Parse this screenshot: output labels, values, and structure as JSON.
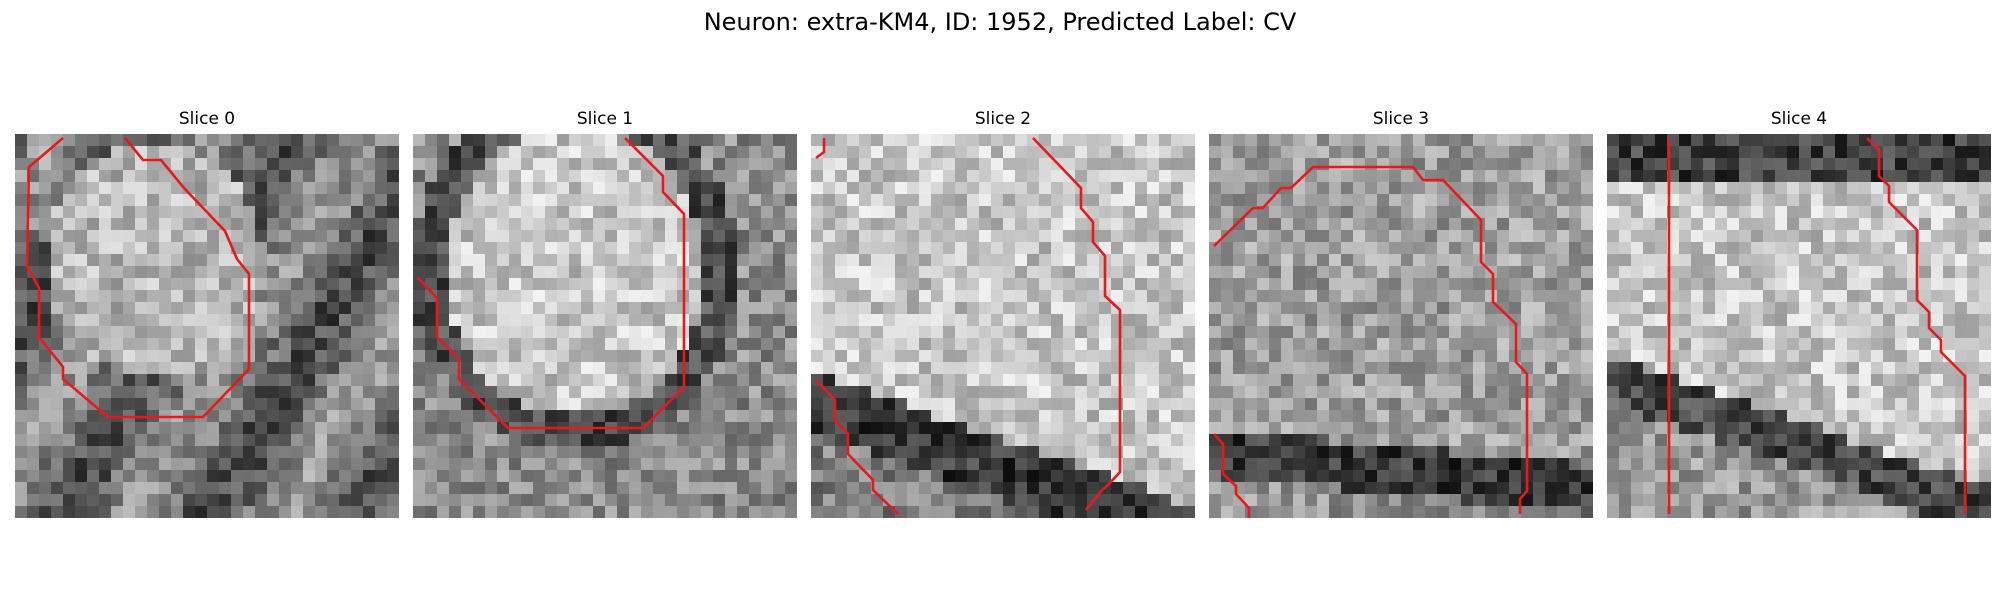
{
  "figure": {
    "title": "Neuron: extra-KM4, ID: 1952, Predicted Label: CV"
  },
  "panels": [
    {
      "title": "Slice 0"
    },
    {
      "title": "Slice 1"
    },
    {
      "title": "Slice 2"
    },
    {
      "title": "Slice 3"
    },
    {
      "title": "Slice 4"
    }
  ],
  "colors": {
    "contour": "#e8191a",
    "background": "#ffffff"
  }
}
